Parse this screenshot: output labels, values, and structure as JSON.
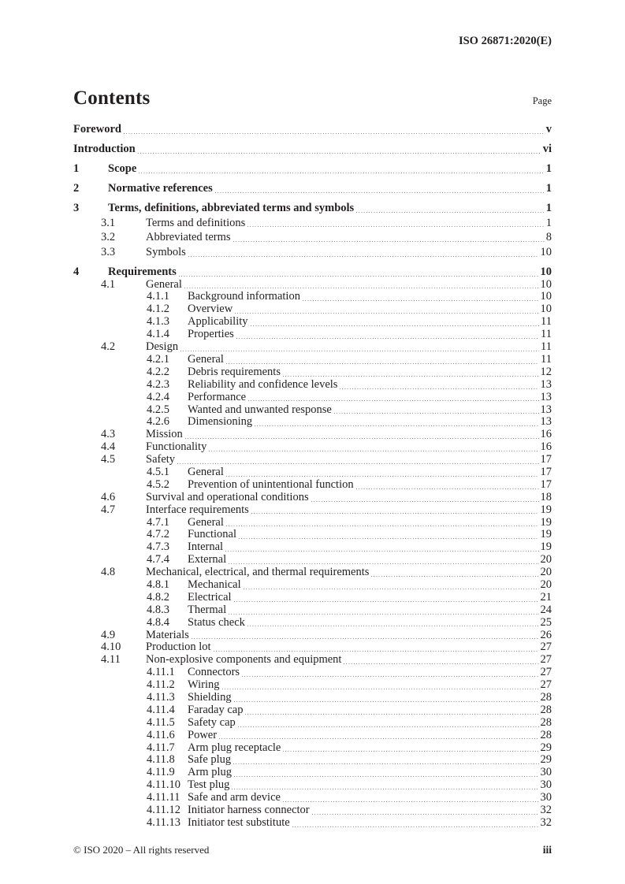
{
  "header": {
    "doc_ref": "ISO 26871:2020(E)"
  },
  "contents": {
    "title": "Contents",
    "page_label": "Page"
  },
  "colors": {
    "text": "#231f20",
    "leader_dots": "#8f8f8f",
    "background": "#ffffff"
  },
  "toc": {
    "entries": [
      {
        "level": 0,
        "num": "",
        "title": "Foreword",
        "page": "v",
        "bold": true
      },
      {
        "level": 0,
        "num": "",
        "title": "Introduction",
        "page": "vi",
        "bold": true
      },
      {
        "level": 1,
        "num": "1",
        "title": "Scope",
        "page": "1",
        "bold": true
      },
      {
        "level": 1,
        "num": "2",
        "title": "Normative references",
        "page": "1",
        "bold": true
      },
      {
        "level": 1,
        "num": "3",
        "title": "Terms, definitions, abbreviated terms and symbols",
        "page": "1",
        "bold": true
      },
      {
        "level": 2,
        "num": "3.1",
        "title": "Terms and definitions",
        "page": "1",
        "bold": false
      },
      {
        "level": 2,
        "num": "3.2",
        "title": "Abbreviated terms",
        "page": "8",
        "bold": false
      },
      {
        "level": 2,
        "num": "3.3",
        "title": "Symbols",
        "page": "10",
        "bold": false
      },
      {
        "level": 1,
        "num": "4",
        "title": "Requirements",
        "page": "10",
        "bold": true
      },
      {
        "level": 2,
        "num": "4.1",
        "title": "General",
        "page": "10",
        "bold": false
      },
      {
        "level": 3,
        "num": "4.1.1",
        "title": "Background information",
        "page": "10",
        "bold": false
      },
      {
        "level": 3,
        "num": "4.1.2",
        "title": "Overview",
        "page": "10",
        "bold": false
      },
      {
        "level": 3,
        "num": "4.1.3",
        "title": "Applicability",
        "page": "11",
        "bold": false
      },
      {
        "level": 3,
        "num": "4.1.4",
        "title": "Properties",
        "page": "11",
        "bold": false
      },
      {
        "level": 2,
        "num": "4.2",
        "title": "Design",
        "page": "11",
        "bold": false
      },
      {
        "level": 3,
        "num": "4.2.1",
        "title": "General",
        "page": "11",
        "bold": false
      },
      {
        "level": 3,
        "num": "4.2.2",
        "title": "Debris requirements",
        "page": "12",
        "bold": false
      },
      {
        "level": 3,
        "num": "4.2.3",
        "title": "Reliability and confidence levels",
        "page": "13",
        "bold": false
      },
      {
        "level": 3,
        "num": "4.2.4",
        "title": "Performance",
        "page": "13",
        "bold": false
      },
      {
        "level": 3,
        "num": "4.2.5",
        "title": "Wanted and unwanted response",
        "page": "13",
        "bold": false
      },
      {
        "level": 3,
        "num": "4.2.6",
        "title": "Dimensioning",
        "page": "13",
        "bold": false
      },
      {
        "level": 2,
        "num": "4.3",
        "title": "Mission",
        "page": "16",
        "bold": false
      },
      {
        "level": 2,
        "num": "4.4",
        "title": "Functionality",
        "page": "16",
        "bold": false
      },
      {
        "level": 2,
        "num": "4.5",
        "title": "Safety",
        "page": "17",
        "bold": false
      },
      {
        "level": 3,
        "num": "4.5.1",
        "title": "General",
        "page": "17",
        "bold": false
      },
      {
        "level": 3,
        "num": "4.5.2",
        "title": "Prevention of unintentional function",
        "page": "17",
        "bold": false
      },
      {
        "level": 2,
        "num": "4.6",
        "title": "Survival and operational conditions",
        "page": "18",
        "bold": false
      },
      {
        "level": 2,
        "num": "4.7",
        "title": "Interface requirements",
        "page": "19",
        "bold": false
      },
      {
        "level": 3,
        "num": "4.7.1",
        "title": "General",
        "page": "19",
        "bold": false
      },
      {
        "level": 3,
        "num": "4.7.2",
        "title": "Functional",
        "page": "19",
        "bold": false
      },
      {
        "level": 3,
        "num": "4.7.3",
        "title": "Internal",
        "page": "19",
        "bold": false
      },
      {
        "level": 3,
        "num": "4.7.4",
        "title": "External",
        "page": "20",
        "bold": false
      },
      {
        "level": 2,
        "num": "4.8",
        "title": "Mechanical, electrical, and thermal requirements",
        "page": "20",
        "bold": false
      },
      {
        "level": 3,
        "num": "4.8.1",
        "title": "Mechanical",
        "page": "20",
        "bold": false
      },
      {
        "level": 3,
        "num": "4.8.2",
        "title": "Electrical",
        "page": "21",
        "bold": false
      },
      {
        "level": 3,
        "num": "4.8.3",
        "title": "Thermal",
        "page": "24",
        "bold": false
      },
      {
        "level": 3,
        "num": "4.8.4",
        "title": "Status check",
        "page": "25",
        "bold": false
      },
      {
        "level": 2,
        "num": "4.9",
        "title": "Materials",
        "page": "26",
        "bold": false
      },
      {
        "level": 2,
        "num": "4.10",
        "title": "Production lot",
        "page": "27",
        "bold": false
      },
      {
        "level": 2,
        "num": "4.11",
        "title": "Non-explosive components and equipment",
        "page": "27",
        "bold": false
      },
      {
        "level": 3,
        "num": "4.11.1",
        "title": "Connectors",
        "page": "27",
        "bold": false
      },
      {
        "level": 3,
        "num": "4.11.2",
        "title": "Wiring",
        "page": "27",
        "bold": false
      },
      {
        "level": 3,
        "num": "4.11.3",
        "title": "Shielding",
        "page": "28",
        "bold": false
      },
      {
        "level": 3,
        "num": "4.11.4",
        "title": "Faraday cap",
        "page": "28",
        "bold": false
      },
      {
        "level": 3,
        "num": "4.11.5",
        "title": "Safety cap",
        "page": "28",
        "bold": false
      },
      {
        "level": 3,
        "num": "4.11.6",
        "title": "Power",
        "page": "28",
        "bold": false
      },
      {
        "level": 3,
        "num": "4.11.7",
        "title": "Arm plug receptacle",
        "page": "29",
        "bold": false
      },
      {
        "level": 3,
        "num": "4.11.8",
        "title": "Safe plug",
        "page": "29",
        "bold": false
      },
      {
        "level": 3,
        "num": "4.11.9",
        "title": "Arm plug",
        "page": "30",
        "bold": false
      },
      {
        "level": 3,
        "num": "4.11.10",
        "title": "Test plug",
        "page": "30",
        "bold": false
      },
      {
        "level": 3,
        "num": "4.11.11",
        "title": "Safe and arm device",
        "page": "30",
        "bold": false
      },
      {
        "level": 3,
        "num": "4.11.12",
        "title": "Initiator harness connector",
        "page": "32",
        "bold": false
      },
      {
        "level": 3,
        "num": "4.11.13",
        "title": "Initiator test substitute",
        "page": "32",
        "bold": false
      }
    ]
  },
  "footer": {
    "copyright": "© ISO 2020 – All rights reserved",
    "page_number": "iii"
  }
}
